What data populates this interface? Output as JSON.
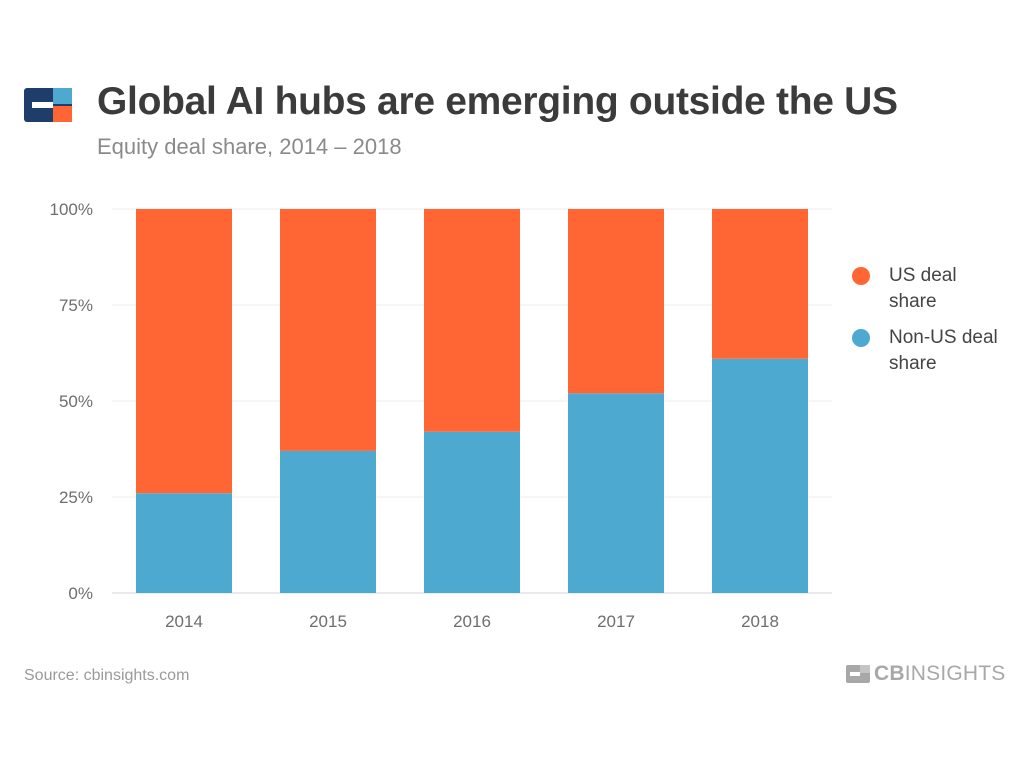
{
  "header": {
    "title": "Global AI hubs are emerging outside the US",
    "subtitle": "Equity deal share, 2014 – 2018"
  },
  "footer": {
    "source": "Source: cbinsights.com",
    "brand_bold": "CB",
    "brand_light": "INSIGHTS"
  },
  "colors": {
    "us": "#ff6633",
    "non_us": "#4ea9d0",
    "logo_navy": "#1f3d6b",
    "logo_blue": "#4ea9d0",
    "logo_orange": "#ff6633"
  },
  "chart_data": {
    "type": "bar",
    "stacked": true,
    "categories": [
      "2014",
      "2015",
      "2016",
      "2017",
      "2018"
    ],
    "series": [
      {
        "name": "Non-US deal share",
        "values": [
          26,
          37,
          42,
          52,
          61
        ]
      },
      {
        "name": "US deal share",
        "values": [
          74,
          63,
          58,
          48,
          39
        ]
      }
    ],
    "legend": [
      "US deal share",
      "Non-US deal share"
    ],
    "y_ticks": [
      "0%",
      "25%",
      "50%",
      "75%",
      "100%"
    ],
    "ylim": [
      0,
      100
    ],
    "grid": true,
    "legend_position": "right"
  }
}
